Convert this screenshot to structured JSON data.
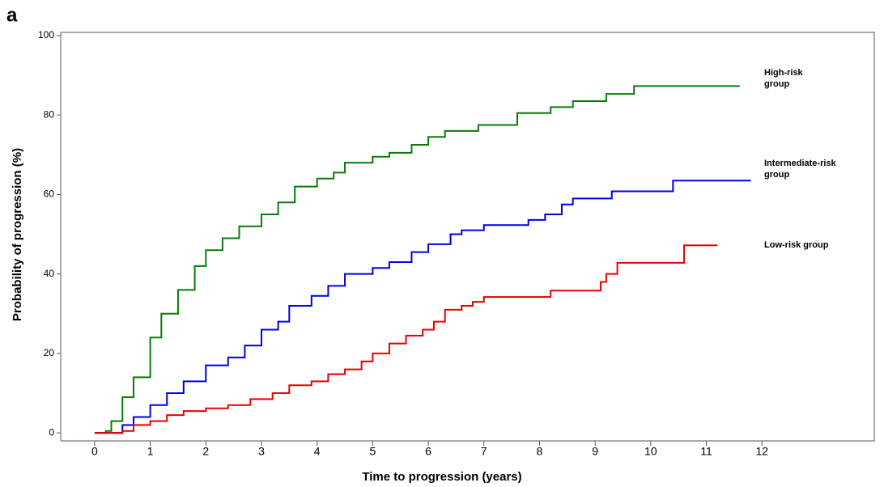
{
  "chart_data": {
    "type": "step",
    "panel_label": "a",
    "xlabel": "Time to progression (years)",
    "ylabel": "Probability of progression (%)",
    "xlim": [
      -0.61,
      14.02
    ],
    "ylim": [
      -2.0,
      100.8
    ],
    "xticks": [
      0,
      1,
      2,
      3,
      4,
      5,
      6,
      7,
      8,
      9,
      10,
      11,
      12
    ],
    "yticks": [
      0,
      20,
      40,
      60,
      80,
      100
    ],
    "series": [
      {
        "name": "High-risk\ngroup",
        "color": "#0a7a0a",
        "x": [
          0,
          0.2,
          0.3,
          0.5,
          0.7,
          1.0,
          1.2,
          1.5,
          1.8,
          2.0,
          2.3,
          2.6,
          3.0,
          3.3,
          3.6,
          4.0,
          4.3,
          4.5,
          5.0,
          5.3,
          5.7,
          6.0,
          6.3,
          6.9,
          7.6,
          8.2,
          8.6,
          9.2,
          9.7,
          11.6
        ],
        "values": [
          0,
          0.5,
          3,
          9,
          14,
          24,
          30,
          36,
          42,
          46,
          49,
          52,
          55,
          58,
          62,
          64,
          65.5,
          68,
          69.5,
          70.5,
          72.5,
          74.5,
          76,
          77.5,
          80.5,
          82,
          83.5,
          85.3,
          87.3,
          87.3
        ]
      },
      {
        "name": "Intermediate-risk\ngroup",
        "color": "#0000e6",
        "x": [
          0,
          0.3,
          0.5,
          0.7,
          1.0,
          1.3,
          1.6,
          2.0,
          2.4,
          2.7,
          3.0,
          3.3,
          3.5,
          3.9,
          4.2,
          4.5,
          5.0,
          5.3,
          5.7,
          6.0,
          6.4,
          6.6,
          7.0,
          7.8,
          8.1,
          8.4,
          8.6,
          9.3,
          10.4,
          11.8
        ],
        "values": [
          0,
          0,
          2,
          4,
          7,
          10,
          13,
          17,
          19,
          22,
          26,
          28,
          32,
          34.5,
          37,
          40,
          41.5,
          43,
          45.5,
          47.5,
          50,
          51,
          52.3,
          53.6,
          55,
          57.5,
          59,
          60.8,
          63.5,
          63.5
        ]
      },
      {
        "name": "Low-risk group",
        "color": "#e60000",
        "x": [
          0,
          0.5,
          0.7,
          1.0,
          1.3,
          1.6,
          2.0,
          2.4,
          2.8,
          3.2,
          3.5,
          3.9,
          4.2,
          4.5,
          4.8,
          5.0,
          5.3,
          5.6,
          5.9,
          6.1,
          6.3,
          6.6,
          6.8,
          7.0,
          8.2,
          9.1,
          9.2,
          9.4,
          10.6,
          11.2
        ],
        "values": [
          0,
          0.5,
          2,
          3,
          4.5,
          5.5,
          6.2,
          7,
          8.5,
          10,
          12,
          13,
          14.8,
          16,
          18,
          20,
          22.5,
          24.5,
          26,
          28,
          31,
          32,
          33,
          34.2,
          35.8,
          38,
          40,
          42.8,
          47.2,
          47.2
        ]
      }
    ]
  }
}
